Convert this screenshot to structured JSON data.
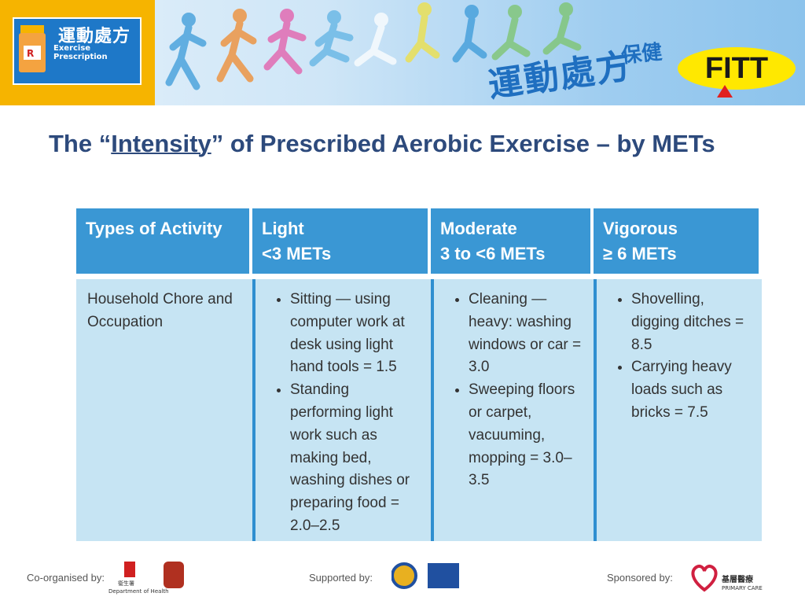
{
  "header": {
    "logo_title": "運動處方",
    "logo_subtitle": "Exercise Prescription",
    "banner_text": "運動處方",
    "banner_text_2": "保健",
    "badge": "FITT"
  },
  "title": {
    "before": "The “",
    "emphasis": "Intensity",
    "after": "” of Prescribed Aerobic Exercise – by METs"
  },
  "table": {
    "columns": [
      {
        "name": "Types of Activity"
      },
      {
        "name": "Light",
        "range": "<3 METs"
      },
      {
        "name": "Moderate",
        "range": "3 to <6 METs"
      },
      {
        "name": "Vigorous",
        "range": "≥ 6 METs"
      }
    ],
    "rows": [
      {
        "category": "Household Chore and Occupation",
        "cells": [
          [
            "Sitting — using computer work at desk using light hand tools = 1.5",
            "Standing performing light work such as making bed, washing dishes or preparing food = 2.0–2.5"
          ],
          [
            "Cleaning — heavy: washing windows or car = 3.0",
            "Sweeping floors or carpet, vacuuming, mopping = 3.0–3.5"
          ],
          [
            "Shovelling, digging ditches = 8.5",
            "Carrying heavy loads such as bricks = 7.5"
          ]
        ]
      }
    ]
  },
  "footer": {
    "co_organised": "Co-organised by:",
    "health_dept_cn": "衞生署",
    "health_dept_en": "Department of Health",
    "supported": "Supported by:",
    "sponsored": "Sponsored by:",
    "primary_care_cn": "基層醫療",
    "primary_care_en": "PRIMARY CARE"
  }
}
